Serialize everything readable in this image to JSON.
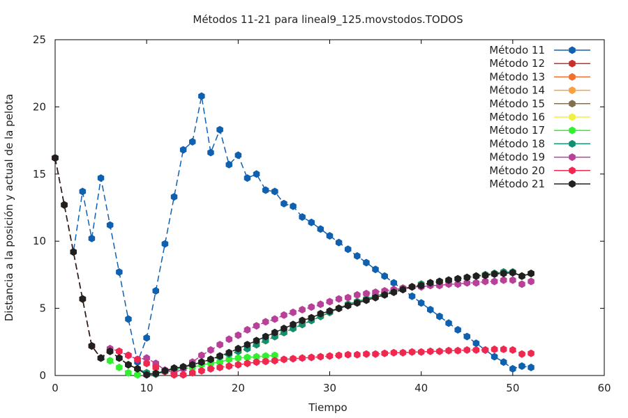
{
  "chart_data": {
    "type": "line",
    "title": "Métodos 11-21 para lineal9_125.movstodos.TODOS",
    "xlabel": "Tiempo",
    "ylabel": "Distancia a la posición y actual de la pelota",
    "xlim": [
      0,
      60
    ],
    "ylim": [
      0,
      25
    ],
    "xticks": [
      0,
      10,
      20,
      30,
      40,
      50,
      60
    ],
    "yticks": [
      0,
      5,
      10,
      15,
      20,
      25
    ],
    "grid": false,
    "legend_position": "top-right",
    "series": [
      {
        "name": "Método 11",
        "color": "#1060b0",
        "x": [
          0,
          1,
          2,
          3,
          4,
          5,
          6,
          7,
          8,
          9,
          10,
          11,
          12,
          13,
          14,
          15,
          16,
          17,
          18,
          19,
          20,
          21,
          22,
          23,
          24,
          25,
          26,
          27,
          28,
          29,
          30,
          31,
          32,
          33,
          34,
          35,
          36,
          37,
          38,
          39,
          40,
          41,
          42,
          43,
          44,
          45,
          46,
          47,
          48,
          49,
          50,
          51,
          52
        ],
        "y": [
          16.2,
          12.7,
          9.2,
          13.7,
          10.2,
          14.7,
          11.2,
          7.7,
          4.2,
          1.0,
          2.8,
          6.3,
          9.8,
          13.3,
          16.8,
          17.4,
          20.8,
          16.6,
          18.3,
          15.7,
          16.4,
          14.7,
          15.0,
          13.8,
          13.7,
          12.8,
          12.6,
          11.8,
          11.4,
          10.9,
          10.4,
          9.9,
          9.4,
          8.9,
          8.4,
          7.9,
          7.4,
          6.9,
          6.4,
          5.9,
          5.4,
          4.9,
          4.4,
          3.9,
          3.4,
          2.9,
          2.4,
          1.9,
          1.4,
          1.0,
          0.5,
          0.7,
          0.6
        ]
      },
      {
        "name": "Método 12",
        "color": "#c8302c",
        "x": [
          0,
          1,
          2,
          3,
          4,
          5,
          6,
          7,
          8,
          9,
          10,
          11,
          12,
          13,
          14,
          15,
          16,
          17,
          18,
          19,
          20,
          21,
          22,
          23,
          24,
          25,
          26,
          27,
          28,
          29,
          30,
          31,
          32,
          33,
          34,
          35,
          36,
          37,
          38,
          39,
          40,
          41,
          42,
          43,
          44,
          45,
          46,
          47,
          48,
          49,
          50,
          51,
          52
        ],
        "y": [
          16.2,
          12.7,
          9.2,
          5.7,
          2.2,
          1.3,
          1.8,
          1.3,
          0.8,
          0.5,
          0.2,
          0.1,
          0.3,
          0.5,
          0.6,
          0.8,
          1.0,
          1.2,
          1.4,
          1.6,
          1.8,
          2.0,
          2.3,
          2.6,
          2.9,
          3.2,
          3.5,
          3.8,
          4.1,
          4.4,
          4.7,
          5.0,
          5.3,
          5.5,
          5.7,
          5.9,
          6.1,
          6.3,
          6.5,
          6.6,
          6.8,
          6.9,
          7.0,
          7.1,
          7.2,
          7.3,
          7.4,
          7.5,
          7.6,
          7.7,
          7.7,
          7.4,
          7.6
        ]
      },
      {
        "name": "Método 13",
        "color": "#f07030",
        "x": [
          0,
          1,
          2,
          3,
          4,
          5,
          6,
          7,
          8,
          9,
          10,
          11,
          12,
          13,
          14,
          15,
          16,
          17,
          18,
          19,
          20,
          21,
          22,
          23,
          24,
          25,
          26,
          27,
          28,
          29,
          30,
          31,
          32,
          33,
          34,
          35,
          36,
          37,
          38,
          39,
          40,
          41,
          42,
          43,
          44,
          45,
          46,
          47,
          48,
          49,
          50,
          51,
          52
        ],
        "y": [
          16.2,
          12.7,
          9.2,
          5.7,
          2.2,
          1.3,
          1.8,
          1.3,
          0.8,
          0.5,
          0.2,
          0.1,
          0.3,
          0.5,
          0.6,
          0.8,
          1.0,
          1.2,
          1.4,
          1.6,
          1.8,
          2.0,
          2.3,
          2.6,
          2.9,
          3.2,
          3.5,
          3.8,
          4.1,
          4.4,
          4.7,
          5.0,
          5.3,
          5.5,
          5.7,
          5.9,
          6.1,
          6.3,
          6.5,
          6.6,
          6.8,
          6.9,
          7.0,
          7.1,
          7.2,
          7.3,
          7.4,
          7.5,
          7.6,
          7.7,
          7.7,
          7.4,
          7.6
        ]
      },
      {
        "name": "Método 14",
        "color": "#f8a040",
        "x": [
          0,
          1,
          2,
          3,
          4,
          5,
          6,
          7,
          8,
          9,
          10,
          11,
          12,
          13,
          14,
          15,
          16,
          17,
          18,
          19,
          20,
          21,
          22,
          23,
          24,
          25,
          26,
          27,
          28,
          29,
          30,
          31,
          32,
          33,
          34,
          35,
          36,
          37,
          38,
          39,
          40,
          41,
          42,
          43,
          44,
          45,
          46,
          47,
          48,
          49,
          50,
          51,
          52
        ],
        "y": [
          16.2,
          12.7,
          9.2,
          5.7,
          2.2,
          1.3,
          1.8,
          1.3,
          0.8,
          0.5,
          0.2,
          0.1,
          0.3,
          0.5,
          0.6,
          0.8,
          1.0,
          1.2,
          1.4,
          1.6,
          1.8,
          2.0,
          2.3,
          2.6,
          2.9,
          3.2,
          3.5,
          3.8,
          4.1,
          4.4,
          4.7,
          5.0,
          5.3,
          5.5,
          5.7,
          5.9,
          6.1,
          6.3,
          6.5,
          6.6,
          6.8,
          6.9,
          7.0,
          7.1,
          7.2,
          7.3,
          7.4,
          7.5,
          7.6,
          7.7,
          7.7,
          7.4,
          7.6
        ]
      },
      {
        "name": "Método 15",
        "color": "#807050",
        "x": [
          0,
          1,
          2,
          3,
          4,
          5,
          6,
          7,
          8,
          9,
          10,
          11,
          12,
          13,
          14,
          15,
          16,
          17,
          18,
          19,
          20,
          21,
          22,
          23,
          24,
          25,
          26,
          27,
          28,
          29,
          30,
          31,
          32,
          33,
          34,
          35,
          36,
          37,
          38,
          39,
          40,
          41,
          42,
          43,
          44,
          45,
          46,
          47,
          48,
          49,
          50,
          51,
          52
        ],
        "y": [
          16.2,
          12.7,
          9.2,
          5.7,
          2.2,
          1.3,
          1.8,
          1.3,
          0.8,
          0.5,
          0.2,
          0.1,
          0.3,
          0.5,
          0.6,
          0.8,
          1.0,
          1.2,
          1.4,
          1.6,
          1.8,
          2.0,
          2.3,
          2.6,
          2.9,
          3.2,
          3.5,
          3.8,
          4.1,
          4.4,
          4.7,
          5.0,
          5.3,
          5.5,
          5.7,
          5.9,
          6.1,
          6.3,
          6.5,
          6.6,
          6.8,
          6.9,
          7.0,
          7.1,
          7.2,
          7.3,
          7.4,
          7.5,
          7.6,
          7.7,
          7.7,
          7.4,
          7.6
        ]
      },
      {
        "name": "Método 16",
        "color": "#f0f040",
        "x": [
          0,
          1,
          2,
          3,
          4,
          5,
          6,
          7,
          8,
          9,
          10,
          11,
          12,
          13,
          14,
          15,
          16,
          17,
          18,
          19,
          20,
          21,
          22,
          23,
          24,
          25,
          26,
          27,
          28,
          29,
          30,
          31,
          32,
          33,
          34,
          35,
          36,
          37,
          38,
          39,
          40,
          41,
          42,
          43,
          44,
          45,
          46,
          47,
          48,
          49,
          50,
          51,
          52
        ],
        "y": [
          16.2,
          12.7,
          9.2,
          5.7,
          2.2,
          1.3,
          1.8,
          1.3,
          0.8,
          0.5,
          0.2,
          0.1,
          0.3,
          0.5,
          0.6,
          0.8,
          1.0,
          1.2,
          1.4,
          1.6,
          1.8,
          2.0,
          2.3,
          2.6,
          2.9,
          3.2,
          3.5,
          3.8,
          4.1,
          4.4,
          4.7,
          5.0,
          5.3,
          5.5,
          5.7,
          5.9,
          6.1,
          6.3,
          6.5,
          6.6,
          6.8,
          6.9,
          7.0,
          7.1,
          7.2,
          7.3,
          7.4,
          7.5,
          7.6,
          7.7,
          7.7,
          7.4,
          7.6
        ]
      },
      {
        "name": "Método 17",
        "color": "#30f030",
        "x": [
          0,
          1,
          2,
          3,
          4,
          5,
          6,
          7,
          8,
          9,
          10,
          11,
          12,
          13,
          14,
          15,
          16,
          17,
          18,
          19,
          20,
          21,
          22,
          23,
          24
        ],
        "y": [
          16.2,
          12.7,
          9.2,
          5.7,
          2.2,
          1.3,
          1.1,
          0.6,
          0.2,
          0.05,
          0.1,
          0.2,
          0.3,
          0.4,
          0.5,
          0.6,
          0.8,
          0.9,
          1.0,
          1.2,
          1.3,
          1.35,
          1.4,
          1.45,
          1.5
        ]
      },
      {
        "name": "Método 18",
        "color": "#109070",
        "x": [
          0,
          1,
          2,
          3,
          4,
          5,
          6,
          7,
          8,
          9,
          10,
          11,
          12,
          13,
          14,
          15,
          16,
          17,
          18,
          19,
          20,
          21,
          22,
          23,
          24,
          25,
          26,
          27,
          28,
          29,
          30,
          31,
          32,
          33,
          34,
          35,
          36,
          37,
          38,
          39,
          40,
          41,
          42,
          43,
          44,
          45,
          46,
          47,
          48,
          49,
          50,
          51,
          52
        ],
        "y": [
          16.2,
          12.7,
          9.2,
          5.7,
          2.2,
          1.3,
          1.8,
          1.3,
          0.8,
          0.5,
          0.2,
          0.1,
          0.3,
          0.5,
          0.6,
          0.8,
          1.0,
          1.2,
          1.4,
          1.6,
          1.8,
          2.0,
          2.3,
          2.6,
          2.9,
          3.2,
          3.5,
          3.8,
          4.1,
          4.4,
          4.7,
          5.0,
          5.3,
          5.5,
          5.7,
          5.9,
          6.1,
          6.3,
          6.5,
          6.6,
          6.8,
          6.9,
          7.0,
          7.1,
          7.2,
          7.3,
          7.4,
          7.5,
          7.6,
          7.7,
          7.7,
          7.4,
          7.6
        ]
      },
      {
        "name": "Método 19",
        "color": "#b84098",
        "x": [
          0,
          1,
          2,
          3,
          4,
          5,
          6,
          7,
          8,
          9,
          10,
          11,
          12,
          13,
          14,
          15,
          16,
          17,
          18,
          19,
          20,
          21,
          22,
          23,
          24,
          25,
          26,
          27,
          28,
          29,
          30,
          31,
          32,
          33,
          34,
          35,
          36,
          37,
          38,
          39,
          40,
          41,
          42,
          43,
          44,
          45,
          46,
          47,
          48,
          49,
          50,
          51,
          52
        ],
        "y": [
          16.2,
          12.7,
          9.2,
          5.7,
          2.2,
          1.3,
          2.0,
          1.8,
          1.5,
          1.2,
          1.3,
          0.9,
          0.4,
          0.2,
          0.5,
          1.0,
          1.5,
          1.9,
          2.3,
          2.7,
          3.0,
          3.4,
          3.7,
          4.0,
          4.2,
          4.5,
          4.7,
          4.9,
          5.1,
          5.3,
          5.5,
          5.7,
          5.8,
          6.0,
          6.1,
          6.2,
          6.3,
          6.4,
          6.5,
          6.6,
          6.6,
          6.7,
          6.7,
          6.8,
          6.8,
          6.9,
          6.9,
          7.0,
          7.0,
          7.1,
          7.1,
          6.8,
          7.0
        ]
      },
      {
        "name": "Método 20",
        "color": "#f02850",
        "x": [
          0,
          1,
          2,
          3,
          4,
          5,
          6,
          7,
          8,
          9,
          10,
          11,
          12,
          13,
          14,
          15,
          16,
          17,
          18,
          19,
          20,
          21,
          22,
          23,
          24,
          25,
          26,
          27,
          28,
          29,
          30,
          31,
          32,
          33,
          34,
          35,
          36,
          37,
          38,
          39,
          40,
          41,
          42,
          43,
          44,
          45,
          46,
          47,
          48,
          49,
          50,
          51,
          52
        ],
        "y": [
          16.2,
          12.7,
          9.2,
          5.7,
          2.2,
          1.3,
          1.8,
          1.8,
          1.5,
          1.2,
          0.9,
          0.6,
          0.3,
          0.05,
          0.05,
          0.2,
          0.35,
          0.5,
          0.6,
          0.7,
          0.8,
          0.9,
          1.0,
          1.05,
          1.1,
          1.2,
          1.25,
          1.3,
          1.35,
          1.4,
          1.45,
          1.5,
          1.55,
          1.55,
          1.6,
          1.6,
          1.65,
          1.7,
          1.7,
          1.75,
          1.75,
          1.8,
          1.8,
          1.85,
          1.85,
          1.9,
          1.9,
          1.9,
          1.95,
          1.95,
          1.9,
          1.6,
          1.65
        ]
      },
      {
        "name": "Método 21",
        "color": "#202020",
        "x": [
          0,
          1,
          2,
          3,
          4,
          5,
          6,
          7,
          8,
          9,
          10,
          11,
          12,
          13,
          14,
          15,
          16,
          17,
          18,
          19,
          20,
          21,
          22,
          23,
          24,
          25,
          26,
          27,
          28,
          29,
          30,
          31,
          32,
          33,
          34,
          35,
          36,
          37,
          38,
          39,
          40,
          41,
          42,
          43,
          44,
          45,
          46,
          47,
          48,
          49,
          50,
          51,
          52
        ],
        "y": [
          16.2,
          12.7,
          9.2,
          5.7,
          2.2,
          1.3,
          1.8,
          1.3,
          0.8,
          0.5,
          0.05,
          0.15,
          0.35,
          0.55,
          0.65,
          0.8,
          1.0,
          1.2,
          1.45,
          1.7,
          2.0,
          2.3,
          2.6,
          2.9,
          3.2,
          3.5,
          3.8,
          4.1,
          4.3,
          4.6,
          4.8,
          5.0,
          5.2,
          5.4,
          5.6,
          5.8,
          6.0,
          6.2,
          6.4,
          6.6,
          6.7,
          6.9,
          7.0,
          7.1,
          7.2,
          7.3,
          7.4,
          7.45,
          7.55,
          7.6,
          7.65,
          7.4,
          7.6
        ]
      }
    ]
  }
}
